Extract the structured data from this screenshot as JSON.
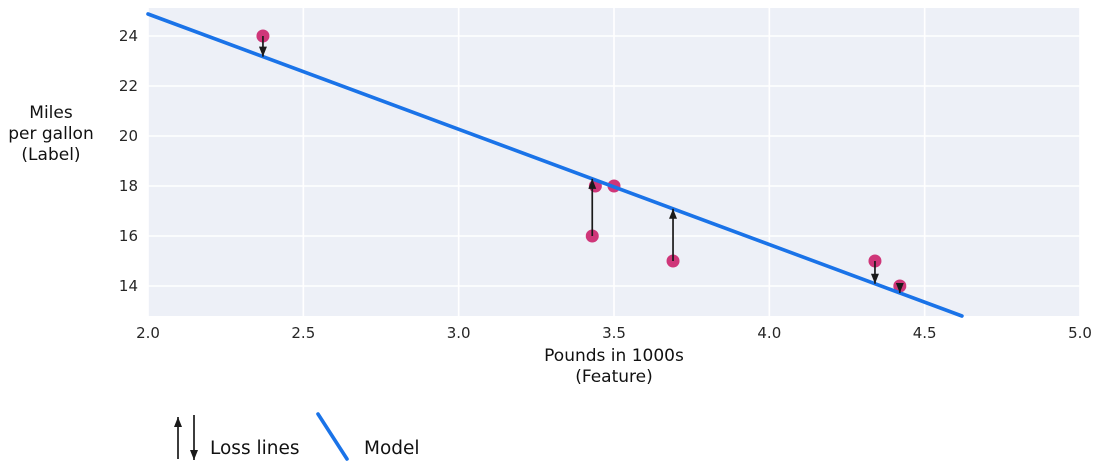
{
  "figure": {
    "background": "#ffffff"
  },
  "chart_data": {
    "type": "scatter",
    "title": "",
    "xlabel_lines": [
      "Pounds in 1000s",
      "(Feature)"
    ],
    "ylabel_lines": [
      "Miles",
      "per gallon",
      "(Label)"
    ],
    "xlim": [
      2.0,
      5.0
    ],
    "ylim": [
      12.8,
      25.12
    ],
    "xtick_values": [
      2.0,
      2.5,
      3.0,
      3.5,
      4.0,
      4.5,
      5.0
    ],
    "xtick_labels": [
      "2.0",
      "2.5",
      "3.0",
      "3.5",
      "4.0",
      "4.5",
      "5.0"
    ],
    "ytick_values": [
      14,
      16,
      18,
      20,
      22,
      24
    ],
    "ytick_labels": [
      "14",
      "16",
      "18",
      "20",
      "22",
      "24"
    ],
    "grid": true,
    "legend_position": "bottom",
    "colors": {
      "plot_background": "#edf0f7",
      "gridline": "#ffffff",
      "model_line": "#1a73e8",
      "point": "#cf3679",
      "loss_arrow": "#1a1a1a",
      "text": "#262626"
    },
    "points": [
      {
        "x": 2.37,
        "y": 24,
        "loss_arrow": "down"
      },
      {
        "x": 3.43,
        "y": 16,
        "loss_arrow": "up"
      },
      {
        "x": 3.44,
        "y": 18,
        "loss_arrow": null
      },
      {
        "x": 3.5,
        "y": 18,
        "loss_arrow": null
      },
      {
        "x": 3.69,
        "y": 15,
        "loss_arrow": "up"
      },
      {
        "x": 4.34,
        "y": 15,
        "loss_arrow": "down"
      },
      {
        "x": 4.42,
        "y": 14,
        "loss_arrow": "down"
      }
    ],
    "model_line": {
      "x1": 2.0,
      "y1": 24.88,
      "x2": 4.62,
      "y2": 12.8
    },
    "legend": [
      {
        "symbol": "loss-arrows",
        "label": "Loss lines"
      },
      {
        "symbol": "model-line",
        "label": "Model"
      }
    ]
  }
}
